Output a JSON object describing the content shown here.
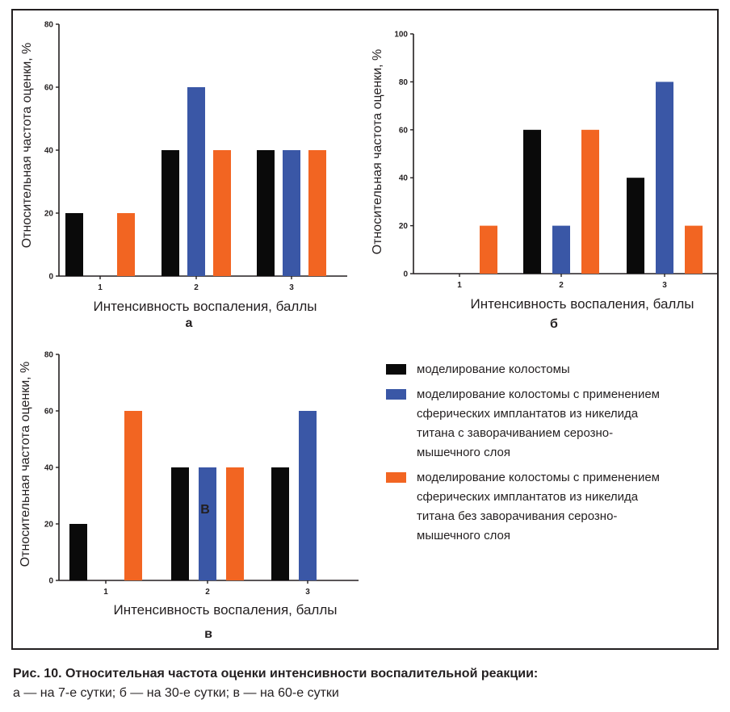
{
  "colors": {
    "black": "#0a0a0a",
    "blue": "#3a57a6",
    "orange": "#f26522"
  },
  "chart_data": [
    {
      "type": "bar",
      "panel_label": "а",
      "title": "",
      "categories": [
        "1",
        "2",
        "3"
      ],
      "series": [
        {
          "name": "моделирование колостомы",
          "color": "black",
          "values": [
            20,
            40,
            40
          ]
        },
        {
          "name": "моделирование колостомы с применением сферических имплантатов из никелида титана с заворачиванием серозно-мышечного слоя",
          "color": "blue",
          "values": [
            0,
            60,
            40
          ]
        },
        {
          "name": "моделирование колостомы с применением сферических имплантатов из никелида титана без заворачивания серозно-мышечного слоя",
          "color": "orange",
          "values": [
            20,
            40,
            40
          ]
        }
      ],
      "xlabel": "Интенсивность воспаления, баллы",
      "ylabel": "Относительная частота оценки, %",
      "ylim": [
        0,
        80
      ],
      "yticks": [
        0,
        20,
        40,
        60,
        80
      ]
    },
    {
      "type": "bar",
      "panel_label": "б",
      "title": "",
      "categories": [
        "1",
        "2",
        "3"
      ],
      "series": [
        {
          "name": "моделирование колостомы",
          "color": "black",
          "values": [
            0,
            60,
            40
          ]
        },
        {
          "name": "моделирование колостомы с применением сферических имплантатов из никелида титана с заворачиванием серозно-мышечного слоя",
          "color": "blue",
          "values": [
            0,
            20,
            80
          ]
        },
        {
          "name": "моделирование колостомы с применением сферических имплантатов из никелида титана без заворачивания серозно-мышечного слоя",
          "color": "orange",
          "values": [
            20,
            60,
            20
          ]
        }
      ],
      "xlabel": "Интенсивность воспаления, баллы",
      "ylabel": "Относительная частота оценки, %",
      "ylim": [
        0,
        100
      ],
      "yticks": [
        0,
        20,
        40,
        60,
        80,
        100
      ]
    },
    {
      "type": "bar",
      "panel_label": "в",
      "title": "",
      "annotation": "В",
      "categories": [
        "1",
        "2",
        "3"
      ],
      "series": [
        {
          "name": "моделирование колостомы",
          "color": "black",
          "values": [
            20,
            40,
            40
          ]
        },
        {
          "name": "моделирование колостомы с применением сферических имплантатов из никелида титана с заворачиванием серозно-мышечного слоя",
          "color": "blue",
          "values": [
            0,
            40,
            60
          ]
        },
        {
          "name": "моделирование колостомы с применением сферических имплантатов из никелида титана без заворачивания серозно-мышечного слоя",
          "color": "orange",
          "values": [
            60,
            40,
            0
          ]
        }
      ],
      "xlabel": "Интенсивность воспаления, баллы",
      "ylabel": "Относительная частота оценки, %",
      "ylim": [
        0,
        80
      ],
      "yticks": [
        0,
        20,
        40,
        60,
        80
      ]
    }
  ],
  "legend": [
    {
      "color": "black",
      "lines": [
        "моделирование колостомы"
      ]
    },
    {
      "color": "blue",
      "lines": [
        "моделирование колостомы с применением",
        "сферических имплантатов из никелида",
        "титана с заворачиванием серозно-",
        "мышечного слоя"
      ]
    },
    {
      "color": "orange",
      "lines": [
        "моделирование колостомы с применением",
        "сферических имплантатов из никелида",
        "титана без заворачивания серозно-",
        "мышечного слоя"
      ]
    }
  ],
  "caption": {
    "title": "Рис. 10. Относительная частота оценки интенсивности воспалительной реакции:",
    "subtitle": "а — на 7-е сутки; б — на 30-е сутки; в — на 60-е сутки"
  }
}
